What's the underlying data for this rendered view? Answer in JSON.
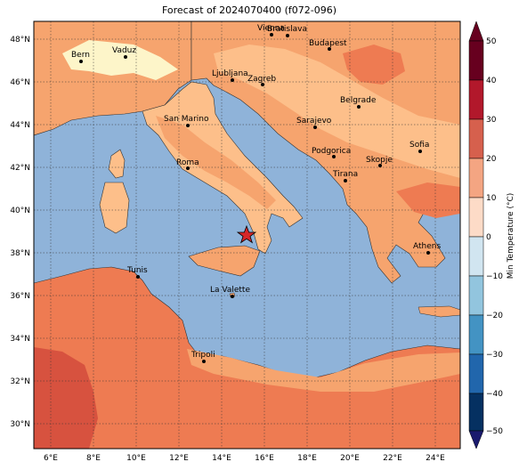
{
  "title": "Forecast of 2024070400 (f072-096)",
  "colorbar": {
    "label": "Min Temperature (°C)",
    "ticks": [
      "50",
      "40",
      "30",
      "20",
      "10",
      "0",
      "−10",
      "−20",
      "−30",
      "−40",
      "−50"
    ],
    "colors": [
      "#67001f",
      "#b2182b",
      "#d6604d",
      "#f4a582",
      "#fddbc7",
      "#f7f7f7",
      "#d1e5f0",
      "#92c5de",
      "#4393c3",
      "#2166ac",
      "#053061"
    ]
  },
  "map": {
    "sea_color": "#8fb3d9",
    "land_colors": {
      "t10_20": "#fdf5c9",
      "t20_25": "#fdbf8a",
      "t25_30": "#f6a46e",
      "t30_35": "#ee7b52",
      "t35_40": "#d7523f"
    },
    "lat_ticks": [
      "48°N",
      "46°N",
      "44°N",
      "42°N",
      "40°N",
      "38°N",
      "36°N",
      "34°N",
      "32°N",
      "30°N"
    ],
    "lon_ticks": [
      "6°E",
      "8°E",
      "10°E",
      "12°E",
      "14°E",
      "16°E",
      "18°E",
      "20°E",
      "22°E",
      "24°E"
    ],
    "marker": "star-marker"
  },
  "cities": [
    {
      "name": "Bern"
    },
    {
      "name": "Vaduz"
    },
    {
      "name": "Vienna"
    },
    {
      "name": "Bratislava"
    },
    {
      "name": "Budapest"
    },
    {
      "name": "Ljubljana"
    },
    {
      "name": "Zagreb"
    },
    {
      "name": "Belgrade"
    },
    {
      "name": "San Marino"
    },
    {
      "name": "Sarajevo"
    },
    {
      "name": "Sofia"
    },
    {
      "name": "Podgorica"
    },
    {
      "name": "Skopje"
    },
    {
      "name": "Roma"
    },
    {
      "name": "Tirana"
    },
    {
      "name": "Athens"
    },
    {
      "name": "Tunis"
    },
    {
      "name": "La Valette"
    },
    {
      "name": "Tripoli"
    }
  ]
}
